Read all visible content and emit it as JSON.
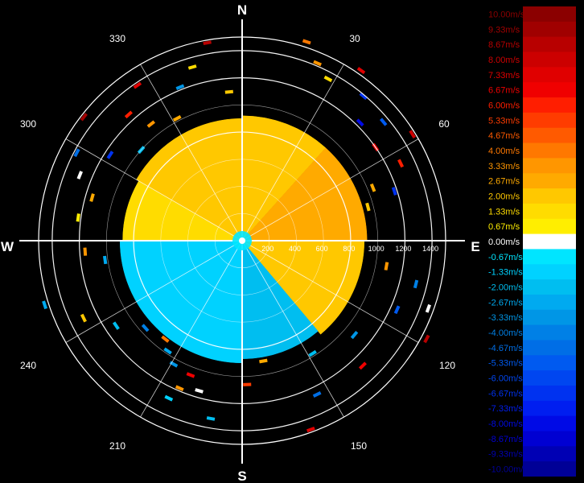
{
  "chart_data": {
    "type": "heatmap",
    "title": "",
    "cardinals": [
      "N",
      "E",
      "S",
      "W"
    ],
    "angle_labels": [
      "30",
      "60",
      "120",
      "150",
      "210",
      "240",
      "300",
      "330"
    ],
    "range_labels": [
      "200",
      "400",
      "600",
      "800",
      "1000",
      "1200",
      "1400"
    ],
    "range_max": 1500,
    "legend": {
      "labels": [
        "10.00m/s",
        "9.33m/s",
        "8.67m/s",
        "8.00m/s",
        "7.33m/s",
        "6.67m/s",
        "6.00m/s",
        "5.33m/s",
        "4.67m/s",
        "4.00m/s",
        "3.33m/s",
        "2.67m/s",
        "2.00m/s",
        "1.33m/s",
        "0.67m/s",
        "0.00m/s",
        "-0.67m/s",
        "-1.33m/s",
        "-2.00m/s",
        "-2.67m/s",
        "-3.33m/s",
        "-4.00m/s",
        "-4.67m/s",
        "-5.33m/s",
        "-6.00m/s",
        "-6.67m/s",
        "-7.33m/s",
        "-8.00m/s",
        "-8.67m/s",
        "-9.33m/s",
        "-10.00m/s"
      ],
      "colors": [
        "#8b0000",
        "#a00000",
        "#b80000",
        "#cc0000",
        "#e00000",
        "#f00000",
        "#ff1e00",
        "#ff3c00",
        "#ff5a00",
        "#ff7800",
        "#ff9600",
        "#ffaa00",
        "#ffc800",
        "#ffdc00",
        "#ffee00",
        "#ffffff",
        "#00e5ff",
        "#00d2ff",
        "#00bef0",
        "#00aaf0",
        "#0096e6",
        "#0080e6",
        "#006ee6",
        "#005af0",
        "#0046f0",
        "#0032f0",
        "#001ef0",
        "#000ae6",
        "#0000d2",
        "#0000b4",
        "#000096"
      ]
    },
    "fields": [
      {
        "from_deg": 0,
        "to_deg": 42,
        "max_range": 920,
        "velocity": 2.0
      },
      {
        "from_deg": 42,
        "to_deg": 90,
        "max_range": 920,
        "velocity": 2.67
      },
      {
        "from_deg": 90,
        "to_deg": 140,
        "max_range": 900,
        "velocity": 2.0
      },
      {
        "from_deg": 140,
        "to_deg": 180,
        "max_range": 870,
        "velocity": -2.0
      },
      {
        "from_deg": 180,
        "to_deg": 270,
        "max_range": 900,
        "velocity": -1.33
      },
      {
        "from_deg": 270,
        "to_deg": 300,
        "max_range": 880,
        "velocity": 1.33
      },
      {
        "from_deg": 300,
        "to_deg": 360,
        "max_range": 900,
        "velocity": 2.0
      }
    ],
    "echoes": [
      {
        "az": 18,
        "range": 1540,
        "velocity": 4.0
      },
      {
        "az": 23,
        "range": 1420,
        "velocity": 3.33
      },
      {
        "az": 28,
        "range": 1350,
        "velocity": 1.33
      },
      {
        "az": 35,
        "range": 1530,
        "velocity": 7.33
      },
      {
        "az": 40,
        "range": 1390,
        "velocity": -6.67
      },
      {
        "az": 45,
        "range": 1230,
        "velocity": -8.0
      },
      {
        "az": 50,
        "range": 1360,
        "velocity": -5.33
      },
      {
        "az": 55,
        "range": 1200,
        "velocity": 6.67
      },
      {
        "az": 58,
        "range": 1480,
        "velocity": 8.0
      },
      {
        "az": 64,
        "range": 1300,
        "velocity": 6.0
      },
      {
        "az": 68,
        "range": 1040,
        "velocity": 2.67
      },
      {
        "az": 72,
        "range": 1180,
        "velocity": -6.67
      },
      {
        "az": 75,
        "range": 960,
        "velocity": 2.0
      },
      {
        "az": 100,
        "range": 1080,
        "velocity": 3.33
      },
      {
        "az": 104,
        "range": 1320,
        "velocity": -4.0
      },
      {
        "az": 110,
        "range": 1460,
        "velocity": 0.0
      },
      {
        "az": 114,
        "range": 1250,
        "velocity": -5.33
      },
      {
        "az": 118,
        "range": 1540,
        "velocity": 8.67
      },
      {
        "az": 130,
        "range": 1080,
        "velocity": -3.33
      },
      {
        "az": 136,
        "range": 1280,
        "velocity": 6.67
      },
      {
        "az": 148,
        "range": 980,
        "velocity": -2.0
      },
      {
        "az": 154,
        "range": 1260,
        "velocity": -4.67
      },
      {
        "az": 160,
        "range": 1480,
        "velocity": 7.33
      },
      {
        "az": 170,
        "range": 900,
        "velocity": 2.67
      },
      {
        "az": 178,
        "range": 1060,
        "velocity": 5.33
      },
      {
        "az": 190,
        "range": 1330,
        "velocity": -2.0
      },
      {
        "az": 196,
        "range": 1150,
        "velocity": 0.0
      },
      {
        "az": 201,
        "range": 1060,
        "velocity": 6.67
      },
      {
        "az": 203,
        "range": 1180,
        "velocity": 3.33
      },
      {
        "az": 205,
        "range": 1280,
        "velocity": -1.33
      },
      {
        "az": 209,
        "range": 1040,
        "velocity": -3.33
      },
      {
        "az": 214,
        "range": 980,
        "velocity": -2.67
      },
      {
        "az": 218,
        "range": 920,
        "velocity": 4.0
      },
      {
        "az": 228,
        "range": 960,
        "velocity": -4.0
      },
      {
        "az": 236,
        "range": 1120,
        "velocity": -2.0
      },
      {
        "az": 244,
        "range": 1300,
        "velocity": 2.0
      },
      {
        "az": 252,
        "range": 1530,
        "velocity": -2.67
      },
      {
        "az": 262,
        "range": 1020,
        "velocity": -2.67
      },
      {
        "az": 266,
        "range": 1160,
        "velocity": 3.33
      },
      {
        "az": 278,
        "range": 1220,
        "velocity": 0.67
      },
      {
        "az": 286,
        "range": 1150,
        "velocity": 2.67
      },
      {
        "az": 292,
        "range": 1290,
        "velocity": 0.0
      },
      {
        "az": 298,
        "range": 1380,
        "velocity": -4.67
      },
      {
        "az": 303,
        "range": 1160,
        "velocity": -6.67
      },
      {
        "az": 308,
        "range": 1480,
        "velocity": 9.33
      },
      {
        "az": 312,
        "range": 1000,
        "velocity": -2.0
      },
      {
        "az": 318,
        "range": 1250,
        "velocity": 6.0
      },
      {
        "az": 322,
        "range": 1090,
        "velocity": 3.33
      },
      {
        "az": 326,
        "range": 1380,
        "velocity": 7.33
      },
      {
        "az": 332,
        "range": 1020,
        "velocity": 2.67
      },
      {
        "az": 338,
        "range": 1220,
        "velocity": -3.33
      },
      {
        "az": 344,
        "range": 1330,
        "velocity": 1.33
      },
      {
        "az": 350,
        "range": 1480,
        "velocity": 8.67
      },
      {
        "az": 355,
        "range": 1100,
        "velocity": 2.0
      }
    ]
  }
}
